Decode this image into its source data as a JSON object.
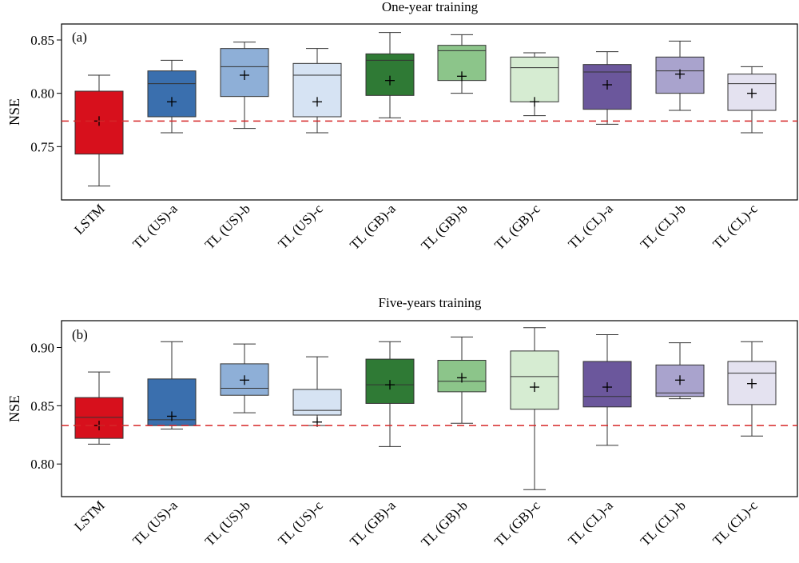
{
  "chart_data": [
    {
      "type": "box",
      "panel_label": "(a)",
      "title": "One-year training",
      "ylabel": "NSE",
      "ylim": [
        0.7,
        0.865
      ],
      "yticks": [
        0.75,
        0.8,
        0.85
      ],
      "ytick_labels": [
        "0.75",
        "0.80",
        "0.85"
      ],
      "reference_line": 0.774,
      "reference_color": "#e03030",
      "categories": [
        "LSTM",
        "TL (US)-a",
        "TL (US)-b",
        "TL (US)-c",
        "TL (GB)-a",
        "TL (GB)-b",
        "TL (GB)-c",
        "TL (CL)-a",
        "TL (CL)-b",
        "TL (CL)-c"
      ],
      "colors": [
        "#d7101c",
        "#3a6fae",
        "#8eafd7",
        "#d6e3f3",
        "#2f7a35",
        "#8cc58a",
        "#d6ecd2",
        "#6b579c",
        "#a9a3cd",
        "#e4e2f0"
      ],
      "series": [
        {
          "min": 0.713,
          "q1": 0.743,
          "median": 0.802,
          "q3": 0.802,
          "max": 0.817,
          "mean": 0.774
        },
        {
          "min": 0.763,
          "q1": 0.778,
          "median": 0.809,
          "q3": 0.821,
          "max": 0.831,
          "mean": 0.792
        },
        {
          "min": 0.767,
          "q1": 0.797,
          "median": 0.825,
          "q3": 0.842,
          "max": 0.848,
          "mean": 0.817
        },
        {
          "min": 0.763,
          "q1": 0.778,
          "median": 0.817,
          "q3": 0.828,
          "max": 0.842,
          "mean": 0.792
        },
        {
          "min": 0.777,
          "q1": 0.798,
          "median": 0.831,
          "q3": 0.837,
          "max": 0.857,
          "mean": 0.812
        },
        {
          "min": 0.8,
          "q1": 0.812,
          "median": 0.84,
          "q3": 0.845,
          "max": 0.855,
          "mean": 0.816
        },
        {
          "min": 0.779,
          "q1": 0.792,
          "median": 0.824,
          "q3": 0.834,
          "max": 0.838,
          "mean": 0.792
        },
        {
          "min": 0.771,
          "q1": 0.785,
          "median": 0.82,
          "q3": 0.827,
          "max": 0.839,
          "mean": 0.808
        },
        {
          "min": 0.784,
          "q1": 0.8,
          "median": 0.821,
          "q3": 0.834,
          "max": 0.849,
          "mean": 0.818
        },
        {
          "min": 0.763,
          "q1": 0.784,
          "median": 0.809,
          "q3": 0.818,
          "max": 0.825,
          "mean": 0.8
        }
      ]
    },
    {
      "type": "box",
      "panel_label": "(b)",
      "title": "Five-years training",
      "ylabel": "NSE",
      "ylim": [
        0.772,
        0.923
      ],
      "yticks": [
        0.8,
        0.85,
        0.9
      ],
      "ytick_labels": [
        "0.80",
        "0.85",
        "0.90"
      ],
      "reference_line": 0.833,
      "reference_color": "#e03030",
      "categories": [
        "LSTM",
        "TL (US)-a",
        "TL (US)-b",
        "TL (US)-c",
        "TL (GB)-a",
        "TL (GB)-b",
        "TL (GB)-c",
        "TL (CL)-a",
        "TL (CL)-b",
        "TL (CL)-c"
      ],
      "colors": [
        "#d7101c",
        "#3a6fae",
        "#8eafd7",
        "#d6e3f3",
        "#2f7a35",
        "#8cc58a",
        "#d6ecd2",
        "#6b579c",
        "#a9a3cd",
        "#e4e2f0"
      ],
      "series": [
        {
          "min": 0.817,
          "q1": 0.822,
          "median": 0.84,
          "q3": 0.857,
          "max": 0.879,
          "mean": 0.833
        },
        {
          "min": 0.83,
          "q1": 0.833,
          "median": 0.838,
          "q3": 0.873,
          "max": 0.905,
          "mean": 0.841
        },
        {
          "min": 0.844,
          "q1": 0.859,
          "median": 0.865,
          "q3": 0.886,
          "max": 0.903,
          "mean": 0.872
        },
        {
          "min": 0.833,
          "q1": 0.842,
          "median": 0.846,
          "q3": 0.864,
          "max": 0.892,
          "mean": 0.836
        },
        {
          "min": 0.815,
          "q1": 0.852,
          "median": 0.868,
          "q3": 0.89,
          "max": 0.905,
          "mean": 0.868
        },
        {
          "min": 0.835,
          "q1": 0.862,
          "median": 0.871,
          "q3": 0.889,
          "max": 0.909,
          "mean": 0.874
        },
        {
          "min": 0.778,
          "q1": 0.847,
          "median": 0.875,
          "q3": 0.897,
          "max": 0.917,
          "mean": 0.866
        },
        {
          "min": 0.816,
          "q1": 0.849,
          "median": 0.858,
          "q3": 0.888,
          "max": 0.911,
          "mean": 0.866
        },
        {
          "min": 0.856,
          "q1": 0.858,
          "median": 0.861,
          "q3": 0.885,
          "max": 0.904,
          "mean": 0.872
        },
        {
          "min": 0.824,
          "q1": 0.851,
          "median": 0.878,
          "q3": 0.888,
          "max": 0.905,
          "mean": 0.869
        }
      ]
    }
  ]
}
